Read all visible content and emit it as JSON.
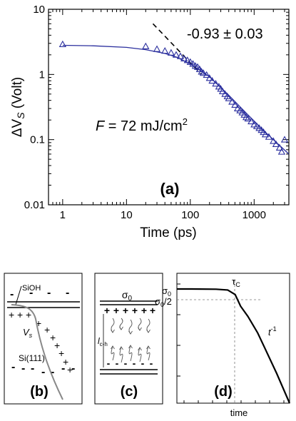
{
  "chart_data": [
    {
      "panel_label": "(a)",
      "type": "scatter",
      "xlabel": "Time (ps)",
      "ylabel_prefix": "ΔV",
      "ylabel_sub": "S",
      "ylabel_suffix": " (Volt)",
      "xscale": "log",
      "yscale": "log",
      "xlim": [
        0.6,
        3500
      ],
      "ylim": [
        0.01,
        10
      ],
      "x_ticks": [
        1,
        10,
        100,
        1000
      ],
      "x_tick_labels": [
        "1",
        "10",
        "100",
        "1000"
      ],
      "y_ticks": [
        0.01,
        0.1,
        1,
        10
      ],
      "y_tick_labels": [
        "0.01",
        "0.1",
        "1",
        "10"
      ],
      "annotation_fluence_prefix": "F",
      "annotation_fluence_rest": " = 72 mJ/cm",
      "annotation_fluence_sup": "2",
      "annotation_slope": "-0.93 ± 0.03",
      "marker": "open-triangle",
      "color": "#2b2f9e",
      "series": [
        {
          "x": [
            1,
            20,
            30,
            40,
            50,
            60,
            70,
            80,
            90,
            100,
            110,
            120,
            130,
            140,
            150,
            160,
            180,
            200,
            220,
            250,
            280,
            300,
            320,
            350,
            380,
            400,
            450,
            500,
            550,
            600,
            650,
            700,
            750,
            800,
            900,
            1000,
            1100,
            1200,
            1300,
            1400,
            1500,
            1700,
            2000,
            2200,
            2500,
            2700,
            3000
          ],
          "y": [
            2.9,
            2.7,
            2.45,
            2.3,
            2.15,
            2.0,
            1.9,
            1.75,
            1.65,
            1.55,
            1.45,
            1.35,
            1.3,
            1.2,
            1.1,
            1.05,
            0.98,
            0.88,
            0.8,
            0.72,
            0.65,
            0.6,
            0.55,
            0.5,
            0.46,
            0.43,
            0.38,
            0.34,
            0.3,
            0.28,
            0.26,
            0.24,
            0.22,
            0.21,
            0.19,
            0.17,
            0.16,
            0.15,
            0.14,
            0.13,
            0.12,
            0.11,
            0.095,
            0.085,
            0.075,
            0.065,
            0.1
          ]
        }
      ],
      "fit": {
        "x": [
          1,
          3,
          10,
          20,
          40,
          60,
          100,
          200,
          400,
          800,
          1500,
          3500
        ],
        "y": [
          2.8,
          2.75,
          2.6,
          2.4,
          2.1,
          1.85,
          1.45,
          0.92,
          0.48,
          0.24,
          0.13,
          0.06
        ]
      },
      "dashed_line": {
        "x": [
          26,
          150
        ],
        "y": [
          6.0,
          1.0
        ]
      }
    },
    {
      "panel_label": "(b)",
      "type": "diagram",
      "labels": {
        "surface_layer": "SiOH",
        "substrate": "Si(111)",
        "potential_prefix": "V",
        "potential_sub": "s"
      },
      "charges": {
        "surface_minus": "-",
        "plus": "+"
      }
    },
    {
      "panel_label": "(c)",
      "type": "diagram",
      "labels": {
        "sigma": "σ",
        "sigma_sub": "0",
        "length_prefix": "l",
        "length_sub": "c-h"
      },
      "charges": {
        "plus": "+",
        "minus": "-"
      }
    },
    {
      "panel_label": "(d)",
      "type": "line",
      "xlabel": "time",
      "labels": {
        "tau": "τ",
        "tau_sub": "C",
        "sigma_zero": "σ",
        "sigma_zero_sub": "0",
        "sigma_half": "σ",
        "sigma_half_sub": "0",
        "sigma_half_suffix": "/2",
        "slope_base": "t",
        "slope_exp": "-1"
      },
      "xscale": "log",
      "yscale": "log",
      "curve": {
        "x": [
          0.01,
          0.1,
          0.3,
          0.6,
          1,
          2,
          5,
          10,
          30,
          100
        ],
        "y": [
          1.0,
          0.99,
          0.96,
          0.8,
          0.5,
          0.33,
          0.17,
          0.09,
          0.033,
          0.01
        ]
      }
    }
  ]
}
